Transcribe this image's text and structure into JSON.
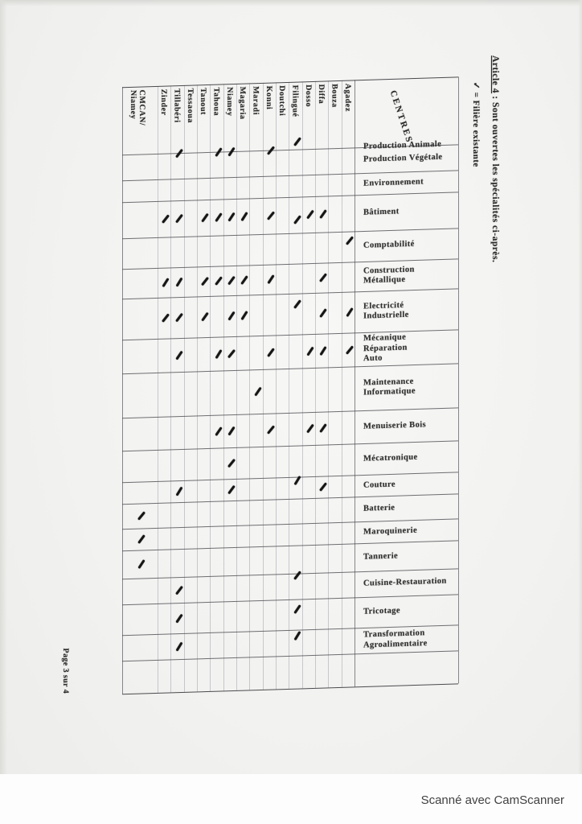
{
  "page": {
    "page_number": "Page 3 sur 4",
    "scanner_credit": "Scanné avec CamScanner"
  },
  "margin": {
    "article_ref": "Article 4",
    "article_text": " : Sont ouvertes les spécialités ci-après.",
    "legend": "✓ = Filière existante"
  },
  "table": {
    "corner_header": "CENTRES",
    "check_symbol": "✓",
    "columns": [
      "CMCAN/\nNiamey",
      "Zinder",
      "Tillabéri",
      "Tessaoua",
      "Tanout",
      "Tahoua",
      "Niamey",
      "Magaria",
      "Maradi",
      "Konni",
      "Doutchi",
      "Filingué",
      "Dosso",
      "Diffa",
      "Bouza",
      "Agadez"
    ],
    "rows": [
      {
        "label": "Production Animale",
        "checks": [
          "Tillabéri",
          "Tahoua",
          "Niamey",
          "Konni",
          "Filingué"
        ]
      },
      {
        "label": "Production Végétale",
        "checks": []
      },
      {
        "label": "Environnement",
        "checks": []
      },
      {
        "label": "Bâtiment",
        "checks": [
          "Zinder",
          "Tillabéri",
          "Tanout",
          "Tahoua",
          "Niamey",
          "Magaria",
          "Konni",
          "Filingué",
          "Dosso",
          "Diffa"
        ]
      },
      {
        "label": "Comptabilité",
        "checks": [
          "Agadez"
        ]
      },
      {
        "label": "Construction\nMétallique",
        "checks": [
          "Zinder",
          "Tillabéri",
          "Tanout",
          "Tahoua",
          "Niamey",
          "Magaria",
          "Konni",
          "Diffa"
        ]
      },
      {
        "label": "Electricité\nIndustrielle",
        "checks": [
          "Zinder",
          "Tillabéri",
          "Tanout",
          "Niamey",
          "Magaria",
          "Filingué",
          "Diffa",
          "Agadez"
        ]
      },
      {
        "label": "Mécanique\nRéparation\nAuto",
        "checks": [
          "Tillabéri",
          "Tahoua",
          "Niamey",
          "Konni",
          "Dosso",
          "Diffa",
          "Agadez"
        ]
      },
      {
        "label": "Maintenance\nInformatique",
        "checks": [
          "Maradi"
        ]
      },
      {
        "label": "Menuiserie Bois",
        "checks": [
          "Tahoua",
          "Niamey",
          "Konni",
          "Dosso",
          "Diffa"
        ]
      },
      {
        "label": "Mécatronique",
        "checks": [
          "Niamey"
        ]
      },
      {
        "label": "Couture",
        "checks": [
          "Tillabéri",
          "Niamey",
          "Filingué",
          "Diffa"
        ]
      },
      {
        "label": "Batterie",
        "checks": [
          "CMCAN/ Niamey"
        ]
      },
      {
        "label": "Maroquinerie",
        "checks": [
          "CMCAN/ Niamey"
        ]
      },
      {
        "label": "Tannerie",
        "checks": [
          "CMCAN/ Niamey"
        ]
      },
      {
        "label": "Cuisine-Restauration",
        "checks": [
          "Tillabéri",
          "Filingué"
        ]
      },
      {
        "label": "Tricotage",
        "checks": [
          "Tillabéri",
          "Filingué"
        ]
      },
      {
        "label": "Transformation\nAgroalimentaire",
        "checks": [
          "Tillabéri",
          "Filingué"
        ]
      }
    ]
  }
}
